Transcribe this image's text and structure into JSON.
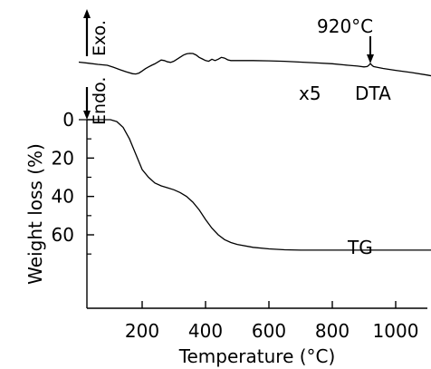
{
  "chart_data": [
    {
      "type": "line",
      "name": "TG",
      "series_label": "TG",
      "xlabel": "Temperature (°C)",
      "ylabel": "Weight loss (%)",
      "xlim": [
        0,
        1140
      ],
      "ylim": [
        0,
        90
      ],
      "y_inverted": true,
      "xticks": [
        200,
        400,
        600,
        800,
        1000
      ],
      "xtick_labels": [
        "200",
        "400",
        "600",
        "800",
        "1000"
      ],
      "yticks": [
        0,
        20,
        40,
        60
      ],
      "ytick_labels": [
        "0",
        "20",
        "40",
        "60"
      ],
      "y_minor_ticks": [
        10,
        30,
        50,
        70
      ],
      "x": [
        0,
        100,
        120,
        140,
        160,
        180,
        200,
        220,
        240,
        260,
        280,
        300,
        320,
        340,
        360,
        380,
        400,
        420,
        440,
        460,
        480,
        500,
        550,
        600,
        650,
        700,
        800,
        900,
        1000,
        1100,
        1140
      ],
      "y": [
        0,
        0,
        1,
        4,
        10,
        18,
        26,
        30,
        33,
        34.5,
        35.5,
        36.5,
        38,
        40,
        43,
        47,
        52,
        56.5,
        60,
        62.5,
        64,
        65,
        66.5,
        67.3,
        67.8,
        68,
        68,
        68,
        68,
        68,
        68
      ]
    },
    {
      "type": "line",
      "name": "DTA",
      "series_label": "DTA",
      "multiplier_label": "x5",
      "exo_label": "Exo.",
      "endo_label": "Endo.",
      "peak_label": "920°C",
      "peak_x": 920,
      "x": [
        0,
        30,
        60,
        90,
        110,
        130,
        150,
        170,
        180,
        190,
        200,
        210,
        220,
        230,
        240,
        250,
        260,
        270,
        280,
        290,
        300,
        310,
        320,
        330,
        340,
        350,
        360,
        370,
        380,
        390,
        400,
        410,
        420,
        430,
        440,
        450,
        460,
        470,
        480,
        500,
        550,
        600,
        650,
        700,
        750,
        800,
        850,
        880,
        900,
        910,
        915,
        920,
        925,
        930,
        940,
        960,
        1000,
        1050,
        1100,
        1140
      ],
      "y": [
        6.0,
        6.7,
        7.4,
        8.0,
        9.3,
        10.8,
        12.1,
        13.3,
        13.5,
        12.9,
        11.6,
        10.2,
        9.0,
        8.0,
        7.1,
        5.9,
        4.7,
        5.0,
        5.8,
        6.2,
        5.4,
        4.2,
        2.9,
        1.6,
        0.8,
        0.5,
        0.6,
        1.5,
        3.0,
        4.0,
        5.0,
        5.5,
        4.2,
        5.0,
        4.2,
        3.0,
        3.5,
        4.6,
        5.0,
        5.0,
        5.0,
        5.2,
        5.5,
        6.0,
        6.5,
        7.0,
        8.0,
        8.5,
        9.0,
        8.8,
        8.0,
        6.9,
        8.0,
        8.8,
        9.2,
        10.0,
        11.2,
        12.6,
        14.2,
        15.7
      ]
    }
  ]
}
